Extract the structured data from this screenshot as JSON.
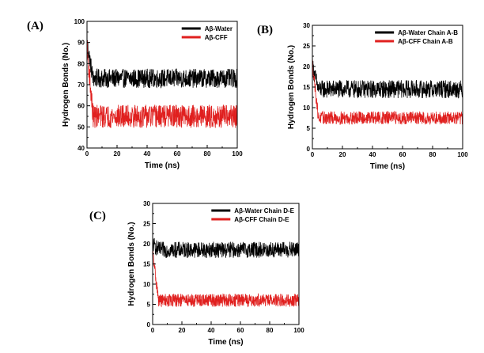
{
  "chart_data": [
    {
      "type": "line",
      "panel_label": "(A)",
      "xlabel": "Time (ns)",
      "ylabel": "Hydrogen Bonds (No.)",
      "xlim": [
        0,
        100
      ],
      "ylim": [
        40,
        100
      ],
      "xticks": [
        0,
        20,
        40,
        60,
        80,
        100
      ],
      "yticks": [
        40,
        50,
        60,
        70,
        80,
        90,
        100
      ],
      "legend_position": "top-right",
      "series": [
        {
          "name": "Aβ-Water",
          "color": "#000000",
          "start": 90,
          "mean": 73,
          "noise": 4.5,
          "min": 64,
          "max": 86
        },
        {
          "name": "Aβ-CFF",
          "color": "#e0201f",
          "start": 88,
          "mean": 55,
          "noise": 5.5,
          "min": 42,
          "max": 68
        }
      ]
    },
    {
      "type": "line",
      "panel_label": "(B)",
      "xlabel": "Time (ns)",
      "ylabel": "Hydrogen Bonds (No.)",
      "xlim": [
        0,
        100
      ],
      "ylim": [
        0,
        30
      ],
      "xticks": [
        0,
        20,
        40,
        60,
        80,
        100
      ],
      "yticks": [
        0,
        5,
        10,
        15,
        20,
        25,
        30
      ],
      "legend_position": "top-right",
      "series": [
        {
          "name": "Aβ-Water Chain A-B",
          "color": "#000000",
          "start": 20,
          "mean": 14.5,
          "noise": 2.2,
          "min": 9,
          "max": 23
        },
        {
          "name": "Aβ-CFF Chain A-B",
          "color": "#e0201f",
          "start": 21,
          "mean": 7.5,
          "noise": 1.6,
          "min": 3,
          "max": 13
        }
      ]
    },
    {
      "type": "line",
      "panel_label": "(C)",
      "xlabel": "Time (ns)",
      "ylabel": "Hydrogen Bonds (No.)",
      "xlim": [
        0,
        100
      ],
      "ylim": [
        0,
        30
      ],
      "xticks": [
        0,
        20,
        40,
        60,
        80,
        100
      ],
      "yticks": [
        0,
        5,
        10,
        15,
        20,
        25,
        30
      ],
      "legend_position": "top-right",
      "series": [
        {
          "name": "Aβ-Water Chain D-E",
          "color": "#000000",
          "start": 20,
          "mean": 18.5,
          "noise": 2.0,
          "min": 12,
          "max": 24
        },
        {
          "name": "Aβ-CFF Chain D-E",
          "color": "#e0201f",
          "start": 18,
          "mean": 6,
          "noise": 1.6,
          "min": 2,
          "max": 11
        }
      ]
    }
  ]
}
